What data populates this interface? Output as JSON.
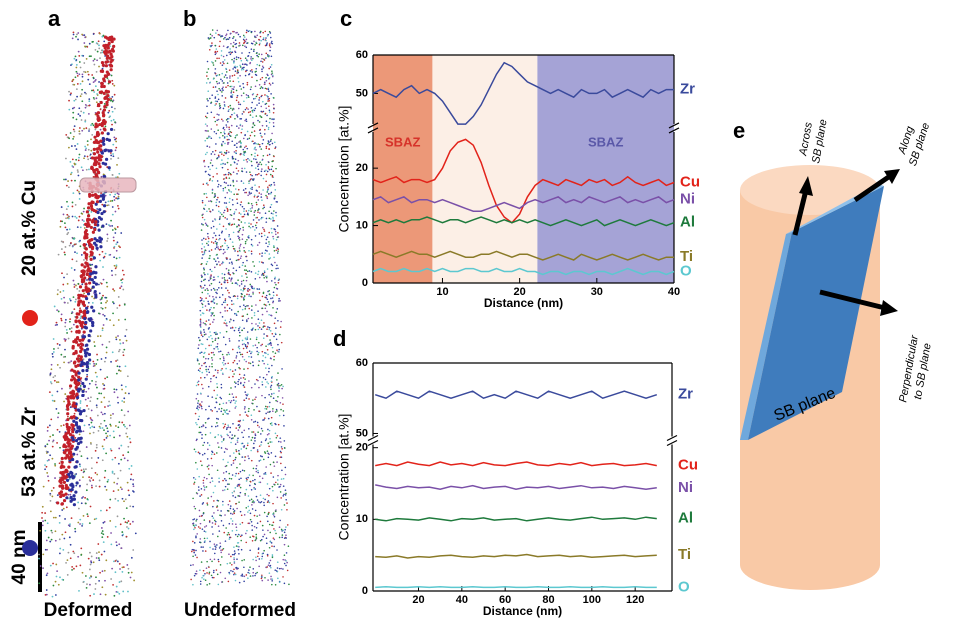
{
  "panels": {
    "a": {
      "letter": "a",
      "legend": [
        {
          "text": "20 at.% Cu",
          "color": "#e2231a"
        },
        {
          "text": "53 at.% Zr",
          "color": "#2a2f9a"
        }
      ],
      "scale": "40 nm",
      "caption": "Deformed"
    },
    "b": {
      "letter": "b",
      "caption": "Undeformed"
    },
    "e": {
      "letter": "e",
      "across": [
        "Across",
        "SB plane"
      ],
      "along": [
        "Along",
        "SB plane"
      ],
      "perpendicular": [
        "Perpendicular",
        "to SB plane"
      ],
      "plane": "SB plane"
    }
  },
  "chart_data": [
    {
      "type": "line",
      "panel": "c",
      "xlabel": "Distance (nm)",
      "ylabel": "Concentration [at.%]",
      "xlim": [
        1,
        40
      ],
      "xticks": [
        10,
        20,
        30,
        40
      ],
      "ylim": [
        0,
        60
      ],
      "ybreak": [
        27,
        41
      ],
      "yticks": [
        0,
        10,
        20,
        50,
        60
      ],
      "regions": [
        {
          "start": 1,
          "end": 8.7,
          "color": "#ec9878",
          "label": "SBAZ",
          "label_color": "#d6322a"
        },
        {
          "start": 8.7,
          "end": 22.3,
          "color": "#fcefe6"
        },
        {
          "start": 22.3,
          "end": 40,
          "color": "#a5a3d6",
          "label": "SBAZ",
          "label_color": "#5a58a8"
        }
      ],
      "x": [
        1,
        2,
        3,
        4,
        5,
        6,
        7,
        8,
        9,
        10,
        11,
        12,
        13,
        14,
        15,
        16,
        17,
        18,
        19,
        20,
        21,
        22,
        23,
        24,
        25,
        26,
        27,
        28,
        29,
        30,
        31,
        32,
        33,
        34,
        35,
        36,
        37,
        38,
        39,
        40
      ],
      "series": [
        {
          "name": "Zr",
          "color": "#3a4a9c",
          "values": [
            50,
            51,
            50,
            49,
            51,
            52,
            50,
            51,
            50,
            48,
            45,
            42,
            42,
            44,
            47,
            51,
            55,
            58,
            57,
            55,
            53,
            52,
            51,
            50,
            51,
            50,
            49,
            51,
            50,
            50,
            51,
            49,
            50,
            51,
            50,
            49,
            51,
            50,
            51,
            51
          ]
        },
        {
          "name": "Cu",
          "color": "#e2231a",
          "values": [
            18,
            17.5,
            18,
            18.5,
            17.5,
            18,
            18,
            17.5,
            18,
            20,
            23,
            24.5,
            25,
            24,
            21,
            17,
            13.5,
            11.5,
            10.5,
            12,
            15,
            17,
            18,
            17.5,
            17,
            18,
            17.5,
            17,
            18,
            17.5,
            18,
            17,
            17.5,
            18.5,
            17.5,
            17,
            17.5,
            18,
            17,
            17.5
          ]
        },
        {
          "name": "Ni",
          "color": "#7a50a8",
          "values": [
            14.5,
            15,
            14,
            14.5,
            15,
            14,
            14.5,
            14.5,
            14,
            14.5,
            14,
            13.5,
            13,
            12.5,
            12.5,
            13,
            13.5,
            14,
            13.5,
            13,
            14,
            14.5,
            14,
            14.5,
            15,
            14,
            14.5,
            14,
            15,
            14.5,
            14,
            14.5,
            15,
            14,
            14.5,
            14,
            14.5,
            15,
            14,
            14.5
          ]
        },
        {
          "name": "Al",
          "color": "#1e7a3c",
          "values": [
            10.5,
            11,
            10.5,
            11,
            10.5,
            11,
            11,
            11.5,
            11,
            10.5,
            11,
            11,
            10.5,
            11,
            11.5,
            11,
            10.5,
            11,
            10.5,
            11,
            10.5,
            11,
            10.5,
            10,
            10.5,
            11,
            10.5,
            10,
            10.5,
            11,
            10,
            10.5,
            11,
            10.5,
            10,
            10.5,
            11,
            10.5,
            10,
            10.5
          ]
        },
        {
          "name": "Ti",
          "color": "#8a7a28",
          "values": [
            5,
            5.5,
            5,
            4.5,
            5,
            5.5,
            5,
            5,
            4.5,
            5,
            5.5,
            5,
            4.5,
            4.5,
            5,
            5,
            5.5,
            5,
            4.5,
            5,
            5,
            4.5,
            4,
            4.5,
            5,
            4.5,
            4,
            5,
            4.5,
            4,
            4.5,
            5,
            4.5,
            4,
            4.5,
            5,
            4.5,
            4,
            4.5,
            4.5
          ]
        },
        {
          "name": "O",
          "color": "#5cc8d0",
          "values": [
            2,
            2.5,
            2,
            2,
            2.5,
            2,
            2,
            2.5,
            2,
            2.5,
            2,
            2,
            2.5,
            2.5,
            2,
            2,
            2.5,
            2,
            2,
            2.5,
            2,
            2,
            1.5,
            2,
            2,
            1.5,
            2,
            2,
            1.5,
            2,
            2,
            1.5,
            2,
            2.5,
            2,
            1.5,
            2,
            2,
            1.5,
            2
          ]
        }
      ]
    },
    {
      "type": "line",
      "panel": "d",
      "xlabel": "Distance (nm)",
      "ylabel": "Concentration [at.%]",
      "xlim": [
        -1,
        137
      ],
      "xticks": [
        20,
        40,
        60,
        80,
        100,
        120
      ],
      "ylim": [
        0,
        60
      ],
      "ybreak": [
        21,
        49
      ],
      "yticks": [
        0,
        10,
        20,
        50,
        60
      ],
      "x": [
        0,
        5,
        10,
        15,
        20,
        25,
        30,
        35,
        40,
        45,
        50,
        55,
        60,
        65,
        70,
        75,
        80,
        85,
        90,
        95,
        100,
        105,
        110,
        115,
        120,
        125,
        130
      ],
      "series": [
        {
          "name": "Zr",
          "color": "#3a4a9c",
          "values": [
            55.5,
            55,
            56,
            55.5,
            55,
            56,
            55.5,
            55,
            55.5,
            56,
            55,
            55.5,
            55,
            56,
            55.5,
            55,
            56,
            55.5,
            55,
            55.5,
            56,
            55,
            55.5,
            56,
            55.5,
            55,
            55.5
          ]
        },
        {
          "name": "Cu",
          "color": "#e2231a",
          "values": [
            17.5,
            17.8,
            17.5,
            18,
            17.7,
            17.5,
            18,
            17.6,
            17.8,
            17.5,
            17.9,
            17.6,
            17.5,
            17.8,
            18,
            17.6,
            17.5,
            17.8,
            17.6,
            17.9,
            17.5,
            17.7,
            17.8,
            17.5,
            17.6,
            17.8,
            17.5
          ]
        },
        {
          "name": "Ni",
          "color": "#7a50a8",
          "values": [
            14.8,
            14.5,
            14.3,
            14.6,
            14.4,
            14.5,
            14.2,
            14.6,
            14.4,
            14.7,
            14.3,
            14.5,
            14.6,
            14.2,
            14.5,
            14.4,
            14.6,
            14.3,
            14.5,
            14.7,
            14.4,
            14.5,
            14.3,
            14.6,
            14.4,
            14.2,
            14.4
          ]
        },
        {
          "name": "Al",
          "color": "#1e7a3c",
          "values": [
            10,
            9.8,
            10.1,
            10,
            9.9,
            10.2,
            10,
            9.8,
            10.1,
            10,
            10.2,
            9.9,
            10,
            10.1,
            9.8,
            10,
            10.2,
            10,
            9.9,
            10.1,
            10.3,
            10,
            10.1,
            10.2,
            10,
            10.3,
            10.1
          ]
        },
        {
          "name": "Ti",
          "color": "#8a7a28",
          "values": [
            4.8,
            4.7,
            4.9,
            4.6,
            4.8,
            4.7,
            4.9,
            5,
            4.8,
            4.7,
            4.9,
            4.8,
            5,
            4.9,
            5.1,
            4.8,
            4.9,
            5,
            4.8,
            4.9,
            4.7,
            4.8,
            4.9,
            5,
            4.8,
            4.9,
            5
          ]
        },
        {
          "name": "O",
          "color": "#5cc8d0",
          "values": [
            0.5,
            0.6,
            0.5,
            0.5,
            0.6,
            0.5,
            0.6,
            0.5,
            0.5,
            0.6,
            0.5,
            0.5,
            0.6,
            0.5,
            0.5,
            0.6,
            0.5,
            0.5,
            0.6,
            0.5,
            0.5,
            0.6,
            0.5,
            0.5,
            0.6,
            0.5,
            0.5
          ]
        }
      ]
    }
  ]
}
